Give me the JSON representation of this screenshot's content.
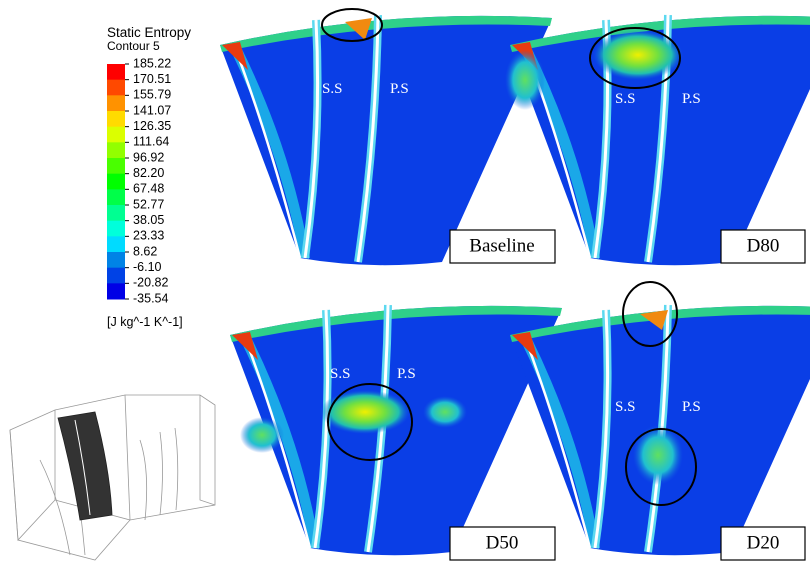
{
  "legend": {
    "title": "Static Entropy",
    "subtitle": "Contour 5",
    "ticks": [
      "185.22",
      "170.51",
      "155.79",
      "141.07",
      "126.35",
      "111.64",
      "96.92",
      "82.20",
      "67.48",
      "52.77",
      "38.05",
      "23.33",
      "8.62",
      "-6.10",
      "-20.82",
      "-35.54"
    ],
    "unit": "[J kg^-1 K^-1]"
  },
  "panels": [
    {
      "label": "Baseline",
      "suction_side": "S.S",
      "pressure_side": "P.S"
    },
    {
      "label": "D80",
      "suction_side": "S.S",
      "pressure_side": "P.S"
    },
    {
      "label": "D50",
      "suction_side": "S.S",
      "pressure_side": "P.S"
    },
    {
      "label": "D20",
      "suction_side": "S.S",
      "pressure_side": "P.S"
    }
  ]
}
